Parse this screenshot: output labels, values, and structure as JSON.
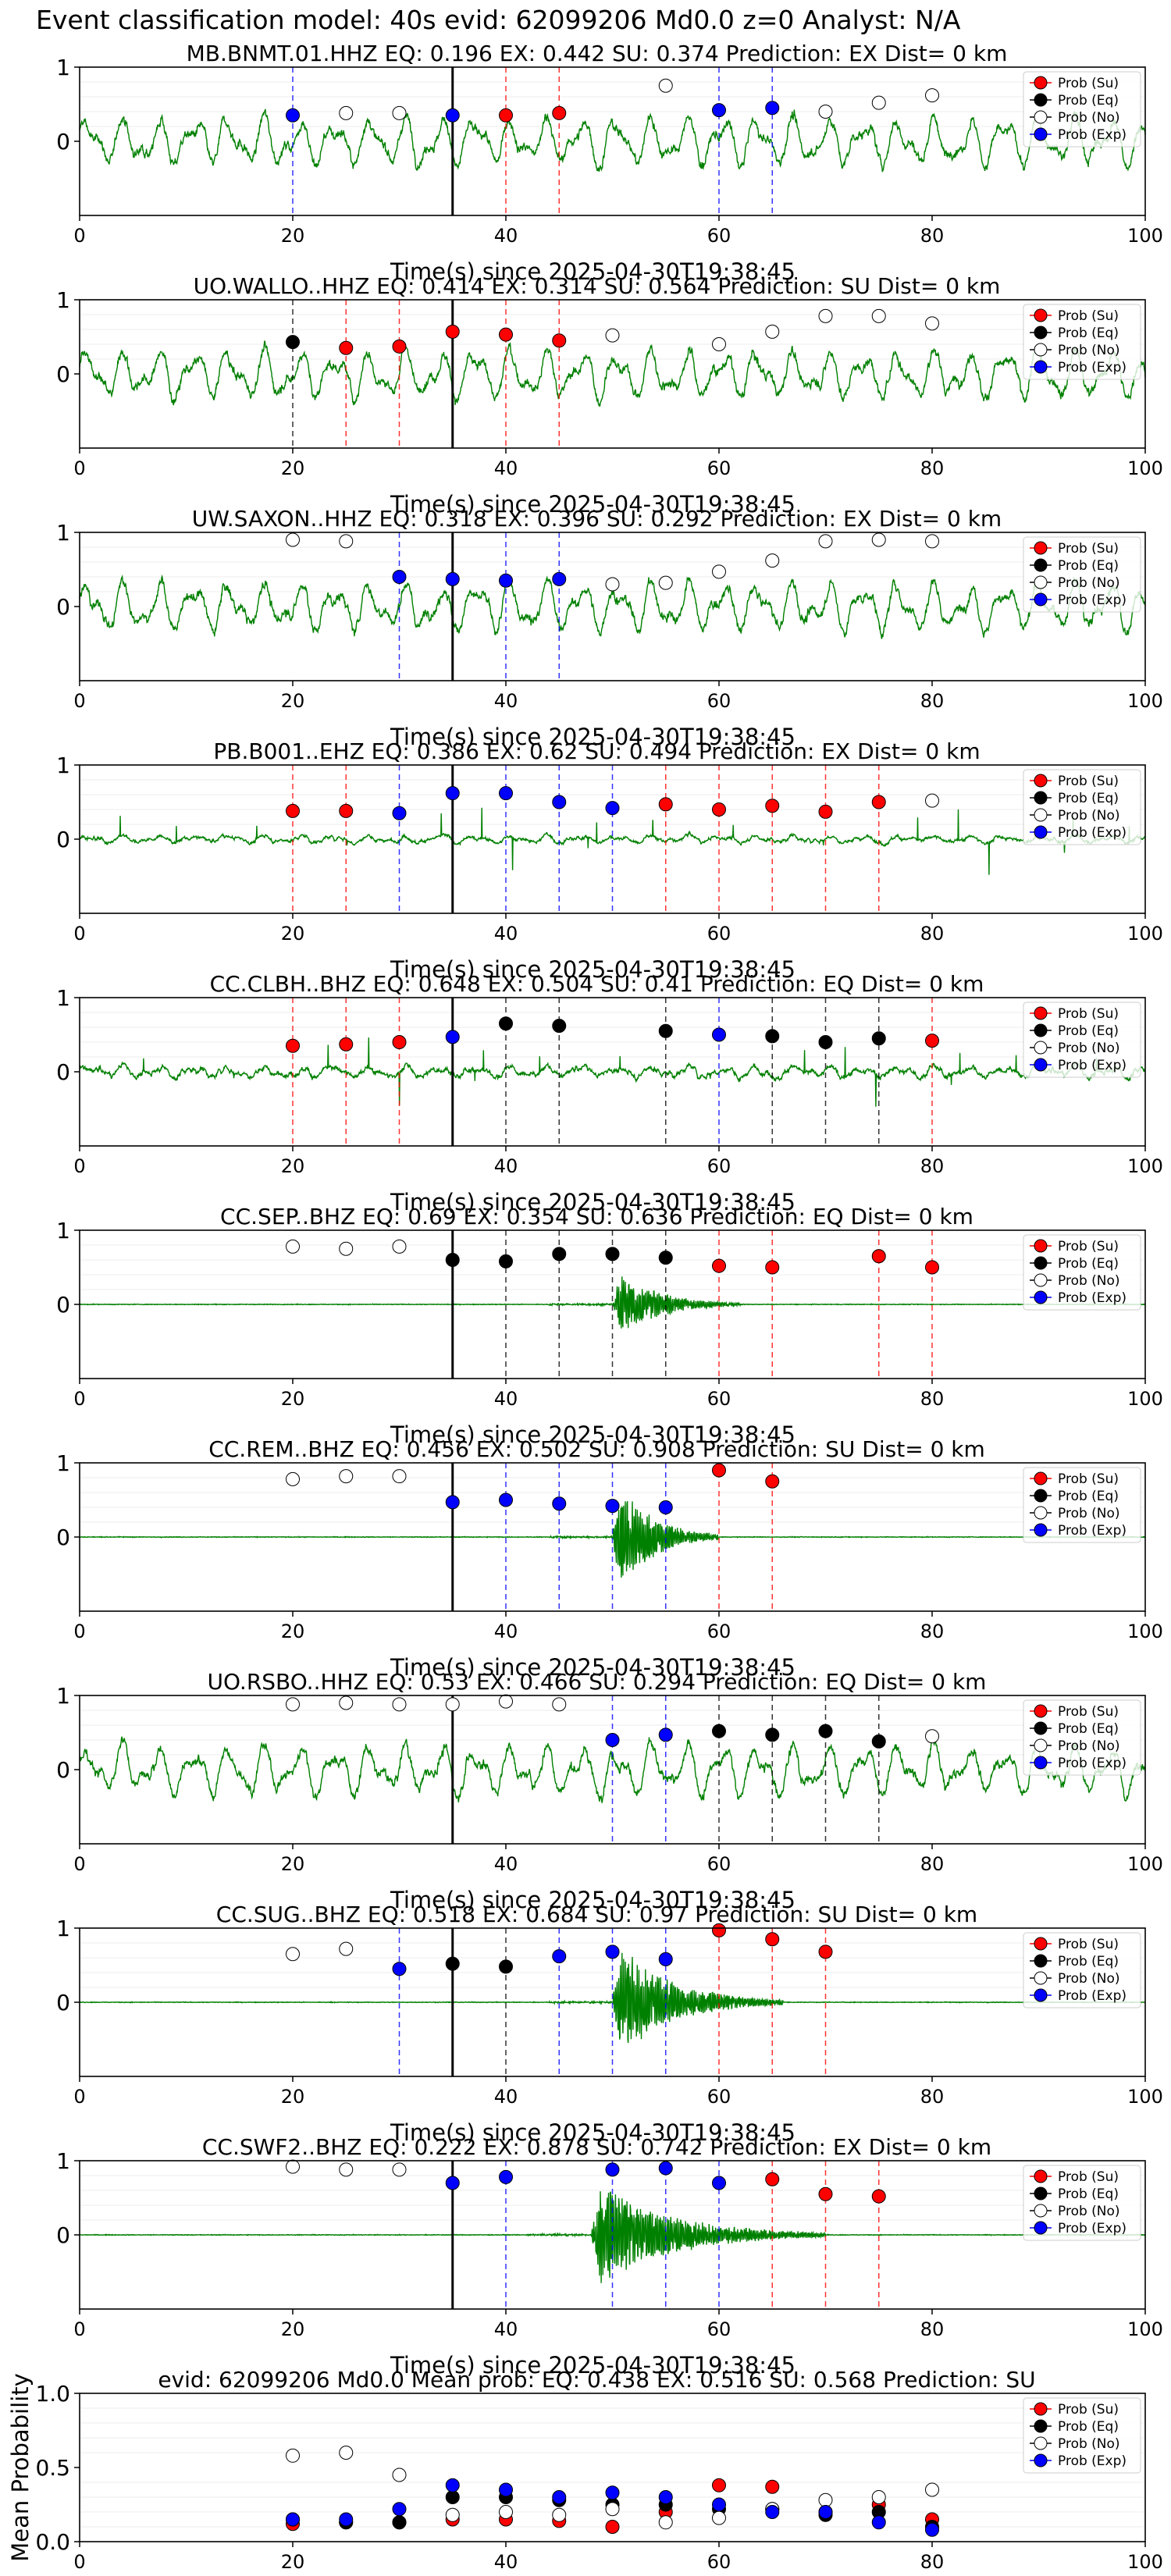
{
  "suptitle": "Event classification model: 40s evid: 62099206 Md0.0 z=0 Analyst: N/A",
  "xlabel": "Time(s) since 2025-04-30T19:38:45",
  "colors": {
    "trace": "#008000",
    "su": "#ff0000",
    "eq": "#000000",
    "no": "#ffffff",
    "exp": "#0000ff",
    "vline_su": "#ff0000",
    "vline_eq": "#000000",
    "vline_exp": "#0000ff",
    "pick": "#000000"
  },
  "legend": [
    {
      "key": "su",
      "label": "Prob (Su)"
    },
    {
      "key": "eq",
      "label": "Prob (Eq)"
    },
    {
      "key": "no",
      "label": "Prob (No)"
    },
    {
      "key": "exp",
      "label": "Prob (Exp)"
    }
  ],
  "chart_data": [
    {
      "type": "line",
      "station": "MB.BNMT.01.HHZ",
      "title": "MB.BNMT.01.HHZ   EQ: 0.196  EX: 0.442  SU: 0.374   Prediction: EX    Dist= 0 km",
      "xlim": [
        0,
        100
      ],
      "ylim": [
        -1,
        1
      ],
      "yticks": [
        0,
        1
      ],
      "xticks": [
        0,
        20,
        40,
        60,
        80,
        100
      ],
      "xlabel": "Time(s) since 2025-04-30T19:38:45",
      "waveform": "noisy",
      "pick_time": 35,
      "points": [
        {
          "t": 20,
          "p": 0.35,
          "cls": "exp"
        },
        {
          "t": 25,
          "p": 0.38,
          "cls": "no"
        },
        {
          "t": 30,
          "p": 0.38,
          "cls": "no"
        },
        {
          "t": 35,
          "p": 0.35,
          "cls": "exp"
        },
        {
          "t": 40,
          "p": 0.35,
          "cls": "su"
        },
        {
          "t": 45,
          "p": 0.38,
          "cls": "su"
        },
        {
          "t": 55,
          "p": 0.75,
          "cls": "no"
        },
        {
          "t": 60,
          "p": 0.42,
          "cls": "exp"
        },
        {
          "t": 65,
          "p": 0.45,
          "cls": "exp"
        },
        {
          "t": 70,
          "p": 0.4,
          "cls": "no"
        },
        {
          "t": 75,
          "p": 0.52,
          "cls": "no"
        },
        {
          "t": 80,
          "p": 0.62,
          "cls": "no"
        }
      ]
    },
    {
      "type": "line",
      "station": "UO.WALLO..HHZ",
      "title": "UO.WALLO..HHZ   EQ: 0.414  EX: 0.314  SU: 0.564   Prediction: SU    Dist= 0 km",
      "xlim": [
        0,
        100
      ],
      "ylim": [
        -1,
        1
      ],
      "yticks": [
        0,
        1
      ],
      "xticks": [
        0,
        20,
        40,
        60,
        80,
        100
      ],
      "xlabel": "Time(s) since 2025-04-30T19:38:45",
      "waveform": "noisy",
      "pick_time": 35,
      "points": [
        {
          "t": 20,
          "p": 0.43,
          "cls": "eq"
        },
        {
          "t": 25,
          "p": 0.35,
          "cls": "su"
        },
        {
          "t": 30,
          "p": 0.37,
          "cls": "su"
        },
        {
          "t": 35,
          "p": 0.57,
          "cls": "su"
        },
        {
          "t": 40,
          "p": 0.53,
          "cls": "su"
        },
        {
          "t": 45,
          "p": 0.45,
          "cls": "su"
        },
        {
          "t": 50,
          "p": 0.52,
          "cls": "no"
        },
        {
          "t": 60,
          "p": 0.4,
          "cls": "no"
        },
        {
          "t": 65,
          "p": 0.57,
          "cls": "no"
        },
        {
          "t": 70,
          "p": 0.78,
          "cls": "no"
        },
        {
          "t": 75,
          "p": 0.78,
          "cls": "no"
        },
        {
          "t": 80,
          "p": 0.68,
          "cls": "no"
        }
      ]
    },
    {
      "type": "line",
      "station": "UW.SAXON..HHZ",
      "title": "UW.SAXON..HHZ   EQ: 0.318  EX: 0.396  SU: 0.292   Prediction: EX    Dist= 0 km",
      "xlim": [
        0,
        100
      ],
      "ylim": [
        -1,
        1
      ],
      "yticks": [
        0,
        1
      ],
      "xticks": [
        0,
        20,
        40,
        60,
        80,
        100
      ],
      "xlabel": "Time(s) since 2025-04-30T19:38:45",
      "waveform": "noisy",
      "pick_time": 35,
      "points": [
        {
          "t": 20,
          "p": 0.9,
          "cls": "no"
        },
        {
          "t": 25,
          "p": 0.88,
          "cls": "no"
        },
        {
          "t": 30,
          "p": 0.4,
          "cls": "exp"
        },
        {
          "t": 35,
          "p": 0.37,
          "cls": "exp"
        },
        {
          "t": 40,
          "p": 0.35,
          "cls": "exp"
        },
        {
          "t": 45,
          "p": 0.37,
          "cls": "exp"
        },
        {
          "t": 50,
          "p": 0.3,
          "cls": "no"
        },
        {
          "t": 55,
          "p": 0.32,
          "cls": "no"
        },
        {
          "t": 60,
          "p": 0.47,
          "cls": "no"
        },
        {
          "t": 65,
          "p": 0.62,
          "cls": "no"
        },
        {
          "t": 70,
          "p": 0.88,
          "cls": "no"
        },
        {
          "t": 75,
          "p": 0.9,
          "cls": "no"
        },
        {
          "t": 80,
          "p": 0.88,
          "cls": "no"
        }
      ]
    },
    {
      "type": "line",
      "station": "PB.B001..EHZ",
      "title": "PB.B001..EHZ   EQ: 0.386  EX: 0.62  SU: 0.494   Prediction: EX    Dist= 0 km",
      "xlim": [
        0,
        100
      ],
      "ylim": [
        -1,
        1
      ],
      "yticks": [
        0,
        1
      ],
      "xticks": [
        0,
        20,
        40,
        60,
        80,
        100
      ],
      "xlabel": "Time(s) since 2025-04-30T19:38:45",
      "waveform": "noisy_small",
      "pick_time": 35,
      "points": [
        {
          "t": 20,
          "p": 0.38,
          "cls": "su"
        },
        {
          "t": 25,
          "p": 0.38,
          "cls": "su"
        },
        {
          "t": 30,
          "p": 0.35,
          "cls": "exp"
        },
        {
          "t": 35,
          "p": 0.62,
          "cls": "exp"
        },
        {
          "t": 40,
          "p": 0.62,
          "cls": "exp"
        },
        {
          "t": 45,
          "p": 0.5,
          "cls": "exp"
        },
        {
          "t": 50,
          "p": 0.42,
          "cls": "exp"
        },
        {
          "t": 55,
          "p": 0.47,
          "cls": "su"
        },
        {
          "t": 60,
          "p": 0.4,
          "cls": "su"
        },
        {
          "t": 65,
          "p": 0.45,
          "cls": "su"
        },
        {
          "t": 70,
          "p": 0.37,
          "cls": "su"
        },
        {
          "t": 75,
          "p": 0.5,
          "cls": "su"
        },
        {
          "t": 80,
          "p": 0.52,
          "cls": "no"
        }
      ]
    },
    {
      "type": "line",
      "station": "CC.CLBH..BHZ",
      "title": "CC.CLBH..BHZ   EQ: 0.648  EX: 0.504  SU: 0.41   Prediction: EQ    Dist= 0 km",
      "xlim": [
        0,
        100
      ],
      "ylim": [
        -1,
        1
      ],
      "yticks": [
        0,
        1
      ],
      "xticks": [
        0,
        20,
        40,
        60,
        80,
        100
      ],
      "xlabel": "Time(s) since 2025-04-30T19:38:45",
      "waveform": "noisy_mid",
      "pick_time": 35,
      "points": [
        {
          "t": 20,
          "p": 0.35,
          "cls": "su"
        },
        {
          "t": 25,
          "p": 0.37,
          "cls": "su"
        },
        {
          "t": 30,
          "p": 0.4,
          "cls": "su"
        },
        {
          "t": 35,
          "p": 0.47,
          "cls": "exp"
        },
        {
          "t": 40,
          "p": 0.65,
          "cls": "eq"
        },
        {
          "t": 45,
          "p": 0.62,
          "cls": "eq"
        },
        {
          "t": 55,
          "p": 0.55,
          "cls": "eq"
        },
        {
          "t": 60,
          "p": 0.5,
          "cls": "exp"
        },
        {
          "t": 65,
          "p": 0.48,
          "cls": "eq"
        },
        {
          "t": 70,
          "p": 0.4,
          "cls": "eq"
        },
        {
          "t": 75,
          "p": 0.45,
          "cls": "eq"
        },
        {
          "t": 80,
          "p": 0.42,
          "cls": "su"
        }
      ]
    },
    {
      "type": "line",
      "station": "CC.SEP..BHZ",
      "title": "CC.SEP..BHZ   EQ: 0.69  EX: 0.354  SU: 0.636   Prediction: EQ    Dist= 0 km",
      "xlim": [
        0,
        100
      ],
      "ylim": [
        -1,
        1
      ],
      "yticks": [
        0,
        1
      ],
      "xticks": [
        0,
        20,
        40,
        60,
        80,
        100
      ],
      "xlabel": "Time(s) since 2025-04-30T19:38:45",
      "waveform": "event",
      "event_onset": 50,
      "event_amp": 0.55,
      "event_len": 12,
      "pick_time": 35,
      "points": [
        {
          "t": 20,
          "p": 0.78,
          "cls": "no"
        },
        {
          "t": 25,
          "p": 0.75,
          "cls": "no"
        },
        {
          "t": 30,
          "p": 0.78,
          "cls": "no"
        },
        {
          "t": 35,
          "p": 0.6,
          "cls": "eq"
        },
        {
          "t": 40,
          "p": 0.58,
          "cls": "eq"
        },
        {
          "t": 45,
          "p": 0.68,
          "cls": "eq"
        },
        {
          "t": 50,
          "p": 0.68,
          "cls": "eq"
        },
        {
          "t": 55,
          "p": 0.63,
          "cls": "eq"
        },
        {
          "t": 60,
          "p": 0.52,
          "cls": "su"
        },
        {
          "t": 65,
          "p": 0.5,
          "cls": "su"
        },
        {
          "t": 75,
          "p": 0.65,
          "cls": "su"
        },
        {
          "t": 80,
          "p": 0.5,
          "cls": "su"
        }
      ]
    },
    {
      "type": "line",
      "station": "CC.REM..BHZ",
      "title": "CC.REM..BHZ   EQ: 0.456  EX: 0.502  SU: 0.908   Prediction: SU    Dist= 0 km",
      "xlim": [
        0,
        100
      ],
      "ylim": [
        -1,
        1
      ],
      "yticks": [
        0,
        1
      ],
      "xticks": [
        0,
        20,
        40,
        60,
        80,
        100
      ],
      "xlabel": "Time(s) since 2025-04-30T19:38:45",
      "waveform": "event",
      "event_onset": 50,
      "event_amp": 0.95,
      "event_len": 10,
      "pick_time": 35,
      "points": [
        {
          "t": 20,
          "p": 0.78,
          "cls": "no"
        },
        {
          "t": 25,
          "p": 0.82,
          "cls": "no"
        },
        {
          "t": 30,
          "p": 0.82,
          "cls": "no"
        },
        {
          "t": 35,
          "p": 0.47,
          "cls": "exp"
        },
        {
          "t": 40,
          "p": 0.5,
          "cls": "exp"
        },
        {
          "t": 45,
          "p": 0.45,
          "cls": "exp"
        },
        {
          "t": 50,
          "p": 0.42,
          "cls": "exp"
        },
        {
          "t": 55,
          "p": 0.4,
          "cls": "exp"
        },
        {
          "t": 60,
          "p": 0.9,
          "cls": "su"
        },
        {
          "t": 65,
          "p": 0.75,
          "cls": "su"
        }
      ]
    },
    {
      "type": "line",
      "station": "UO.RSBO..HHZ",
      "title": "UO.RSBO..HHZ   EQ: 0.53  EX: 0.466  SU: 0.294   Prediction: EQ    Dist= 0 km",
      "xlim": [
        0,
        100
      ],
      "ylim": [
        -1,
        1
      ],
      "yticks": [
        0,
        1
      ],
      "xticks": [
        0,
        20,
        40,
        60,
        80,
        100
      ],
      "xlabel": "Time(s) since 2025-04-30T19:38:45",
      "waveform": "noisy",
      "pick_time": 35,
      "points": [
        {
          "t": 20,
          "p": 0.88,
          "cls": "no"
        },
        {
          "t": 25,
          "p": 0.9,
          "cls": "no"
        },
        {
          "t": 30,
          "p": 0.88,
          "cls": "no"
        },
        {
          "t": 35,
          "p": 0.88,
          "cls": "no"
        },
        {
          "t": 40,
          "p": 0.92,
          "cls": "no"
        },
        {
          "t": 45,
          "p": 0.88,
          "cls": "no"
        },
        {
          "t": 50,
          "p": 0.4,
          "cls": "exp"
        },
        {
          "t": 55,
          "p": 0.47,
          "cls": "exp"
        },
        {
          "t": 60,
          "p": 0.52,
          "cls": "eq"
        },
        {
          "t": 65,
          "p": 0.47,
          "cls": "eq"
        },
        {
          "t": 70,
          "p": 0.52,
          "cls": "eq"
        },
        {
          "t": 75,
          "p": 0.38,
          "cls": "eq"
        },
        {
          "t": 80,
          "p": 0.45,
          "cls": "no"
        }
      ]
    },
    {
      "type": "line",
      "station": "CC.SUG..BHZ",
      "title": "CC.SUG..BHZ   EQ: 0.518  EX: 0.684  SU: 0.97   Prediction: SU    Dist= 0 km",
      "xlim": [
        0,
        100
      ],
      "ylim": [
        -1,
        1
      ],
      "yticks": [
        0,
        1
      ],
      "xticks": [
        0,
        20,
        40,
        60,
        80,
        100
      ],
      "xlabel": "Time(s) since 2025-04-30T19:38:45",
      "waveform": "event",
      "event_onset": 50,
      "event_amp": 0.9,
      "event_len": 16,
      "pick_time": 35,
      "points": [
        {
          "t": 20,
          "p": 0.65,
          "cls": "no"
        },
        {
          "t": 25,
          "p": 0.72,
          "cls": "no"
        },
        {
          "t": 30,
          "p": 0.45,
          "cls": "exp"
        },
        {
          "t": 35,
          "p": 0.52,
          "cls": "eq"
        },
        {
          "t": 40,
          "p": 0.48,
          "cls": "eq"
        },
        {
          "t": 45,
          "p": 0.62,
          "cls": "exp"
        },
        {
          "t": 50,
          "p": 0.68,
          "cls": "exp"
        },
        {
          "t": 55,
          "p": 0.58,
          "cls": "exp"
        },
        {
          "t": 60,
          "p": 0.97,
          "cls": "su"
        },
        {
          "t": 65,
          "p": 0.85,
          "cls": "su"
        },
        {
          "t": 70,
          "p": 0.68,
          "cls": "su"
        }
      ]
    },
    {
      "type": "line",
      "station": "CC.SWF2..BHZ",
      "title": "CC.SWF2..BHZ   EQ: 0.222  EX: 0.878  SU: 0.742   Prediction: EX    Dist= 0 km",
      "xlim": [
        0,
        100
      ],
      "ylim": [
        -1,
        1
      ],
      "yticks": [
        0,
        1
      ],
      "xticks": [
        0,
        20,
        40,
        60,
        80,
        100
      ],
      "xlabel": "Time(s) since 2025-04-30T19:38:45",
      "waveform": "event",
      "event_onset": 48,
      "event_amp": 0.8,
      "event_len": 22,
      "pick_time": 35,
      "points": [
        {
          "t": 20,
          "p": 0.92,
          "cls": "no"
        },
        {
          "t": 25,
          "p": 0.88,
          "cls": "no"
        },
        {
          "t": 30,
          "p": 0.88,
          "cls": "no"
        },
        {
          "t": 35,
          "p": 0.7,
          "cls": "exp"
        },
        {
          "t": 40,
          "p": 0.78,
          "cls": "exp"
        },
        {
          "t": 50,
          "p": 0.88,
          "cls": "exp"
        },
        {
          "t": 55,
          "p": 0.9,
          "cls": "exp"
        },
        {
          "t": 60,
          "p": 0.7,
          "cls": "exp"
        },
        {
          "t": 65,
          "p": 0.75,
          "cls": "su"
        },
        {
          "t": 70,
          "p": 0.55,
          "cls": "su"
        },
        {
          "t": 75,
          "p": 0.52,
          "cls": "su"
        }
      ]
    },
    {
      "type": "scatter",
      "station": "mean",
      "title": "evid: 62099206  Md0.0   Mean prob:   EQ: 0.438  EX: 0.516  SU: 0.568   Prediction: SU",
      "ylabel": "Mean Probability",
      "xlim": [
        0,
        100
      ],
      "ylim": [
        0,
        1
      ],
      "yticks": [
        0.0,
        0.5,
        1.0
      ],
      "ytick_labels": [
        "0.0",
        "0.5",
        "1.0"
      ],
      "xticks": [
        0,
        20,
        40,
        60,
        80,
        100
      ],
      "series": [
        {
          "name": "Prob (Su)",
          "cls": "su",
          "x": [
            20,
            25,
            30,
            35,
            40,
            45,
            50,
            55,
            60,
            65,
            70,
            75,
            80
          ],
          "y": [
            0.12,
            0.13,
            0.13,
            0.15,
            0.15,
            0.14,
            0.1,
            0.2,
            0.38,
            0.37,
            0.2,
            0.25,
            0.15
          ]
        },
        {
          "name": "Prob (Eq)",
          "cls": "eq",
          "x": [
            20,
            25,
            30,
            35,
            40,
            45,
            50,
            55,
            60,
            65,
            70,
            75,
            80
          ],
          "y": [
            0.15,
            0.13,
            0.13,
            0.3,
            0.3,
            0.28,
            0.25,
            0.25,
            0.22,
            0.22,
            0.18,
            0.2,
            0.1
          ]
        },
        {
          "name": "Prob (No)",
          "cls": "no",
          "x": [
            20,
            25,
            30,
            35,
            40,
            45,
            50,
            55,
            60,
            65,
            70,
            75,
            80
          ],
          "y": [
            0.58,
            0.6,
            0.45,
            0.18,
            0.2,
            0.18,
            0.22,
            0.13,
            0.16,
            0.22,
            0.28,
            0.3,
            0.35
          ]
        },
        {
          "name": "Prob (Exp)",
          "cls": "exp",
          "x": [
            20,
            25,
            30,
            35,
            40,
            45,
            50,
            55,
            60,
            65,
            70,
            75,
            80
          ],
          "y": [
            0.15,
            0.15,
            0.22,
            0.38,
            0.35,
            0.3,
            0.33,
            0.3,
            0.25,
            0.2,
            0.2,
            0.13,
            0.08
          ]
        }
      ]
    }
  ]
}
